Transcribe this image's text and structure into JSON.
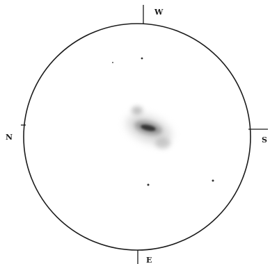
{
  "drawing": {
    "colors": {
      "background": "#ffffff",
      "ink": "#1a1a1a",
      "nebula": "#555555"
    },
    "compass": {
      "top": "W",
      "left": "N",
      "right": "S",
      "bottom": "E"
    }
  }
}
